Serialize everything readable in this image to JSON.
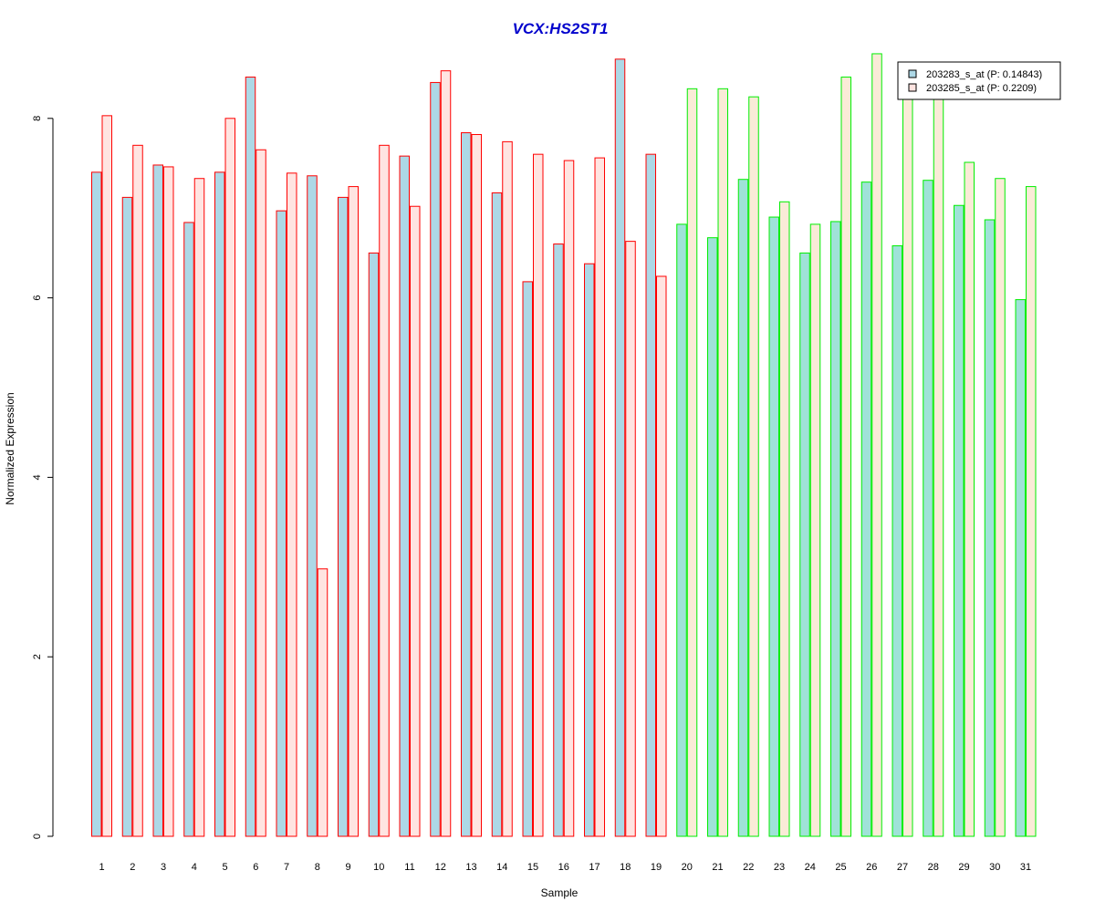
{
  "chart_data": {
    "type": "bar",
    "title": "VCX:HS2ST1",
    "xlabel": "Sample",
    "ylabel": "Normalized Expression",
    "ylim": [
      0,
      8.8
    ],
    "yticks": [
      0,
      2,
      4,
      6,
      8
    ],
    "categories": [
      "1",
      "2",
      "3",
      "4",
      "5",
      "6",
      "7",
      "8",
      "9",
      "10",
      "11",
      "12",
      "13",
      "14",
      "15",
      "16",
      "17",
      "18",
      "19",
      "20",
      "21",
      "22",
      "23",
      "24",
      "25",
      "26",
      "27",
      "28",
      "29",
      "30",
      "31"
    ],
    "series": [
      {
        "name": "203283_s_at (P: 0.14843)",
        "values": [
          7.4,
          7.12,
          7.48,
          6.84,
          7.4,
          8.46,
          6.97,
          7.36,
          7.12,
          6.5,
          7.58,
          8.4,
          7.84,
          7.17,
          6.18,
          6.6,
          6.38,
          8.66,
          7.6,
          6.82,
          6.67,
          7.32,
          6.9,
          6.5,
          6.85,
          7.29,
          6.58,
          7.31,
          7.03,
          6.87,
          5.98
        ]
      },
      {
        "name": "203285_s_at (P: 0.2209)",
        "values": [
          8.03,
          7.7,
          7.46,
          7.33,
          8.0,
          7.65,
          7.39,
          2.98,
          7.24,
          7.7,
          7.02,
          8.53,
          7.82,
          7.74,
          7.6,
          7.53,
          7.56,
          6.63,
          6.24,
          8.33,
          8.33,
          8.24,
          7.07,
          6.82,
          8.46,
          8.72,
          8.3,
          8.3,
          7.51,
          7.33,
          7.24
        ]
      }
    ],
    "groups": [
      {
        "samples": [
          1,
          19
        ],
        "border_color": "#ff0000"
      },
      {
        "samples": [
          20,
          31
        ],
        "border_color": "#00ee00"
      }
    ],
    "colors": {
      "title": "#0000cc",
      "group1_series1_fill": "#add8e6",
      "group1_series2_fill": "#ffe4e1",
      "group2_series1_fill": "#9fe2d8",
      "group2_series2_fill": "#faebd7"
    },
    "legend_position": "top-right",
    "grid": false
  }
}
